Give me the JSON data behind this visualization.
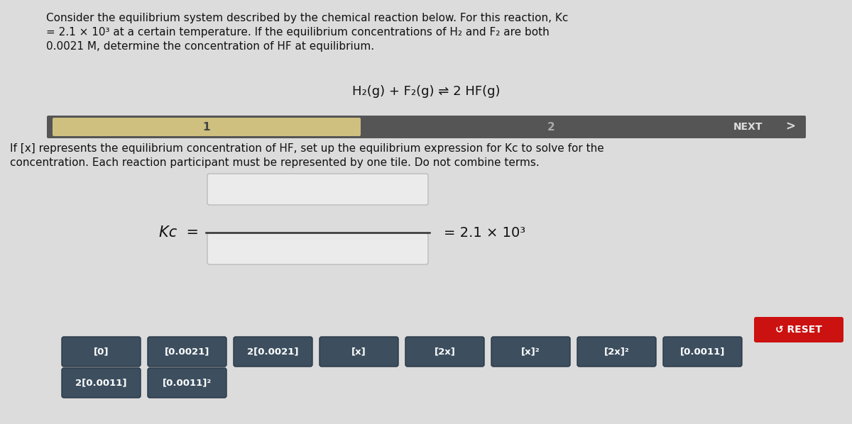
{
  "bg_color": "#dcdcdc",
  "title_text_line1": "Consider the equilibrium system described by the chemical reaction below. For this reaction, Kc",
  "title_text_line2": "= 2.1 × 10³ at a certain temperature. If the equilibrium concentrations of H₂ and F₂ are both",
  "title_text_line3": "0.0021 M, determine the concentration of HF at equilibrium.",
  "reaction_text": "H₂(g) + F₂(g) ⇌ 2 HF(g)",
  "progress_bar_bg": "#555555",
  "progress_bar_fill": "#cfc080",
  "progress_label1": "1",
  "progress_label2": "2",
  "next_label": "NEXT",
  "instruction_line1": "If [x] represents the equilibrium concentration of HF, set up the equilibrium expression for Kc to solve for the",
  "instruction_line2": "concentration. Each reaction participant must be represented by one tile. Do not combine terms.",
  "kc_label": "Kᴄ  =",
  "kc_value": "= 2.1 × 10³",
  "reset_label": "↺ RESET",
  "reset_color": "#cc1111",
  "tiles_row1": [
    "[0]",
    "[0.0021]",
    "2[0.0021]",
    "[x]",
    "[2x]",
    "[x]²",
    "[2x]²",
    "[0.0011]"
  ],
  "tiles_row2": [
    "2[0.0011]",
    "[0.0011]²"
  ],
  "tile_bg": "#3d4f5f",
  "tile_text_color": "#ffffff"
}
